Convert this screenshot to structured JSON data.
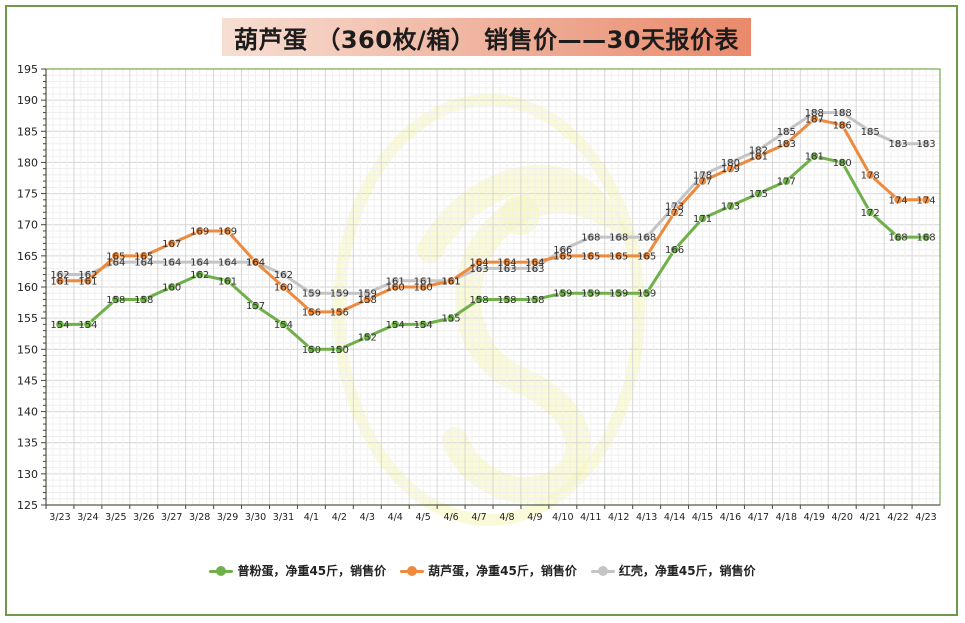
{
  "title": "葫芦蛋 （360枚/箱） 销售价——30天报价表",
  "colors": {
    "green": "#6fb04a",
    "orange": "#ee8a3e",
    "gray": "#c4c4c4",
    "frame": "#6f9a4a",
    "watermark": "#f4f3a6"
  },
  "chart_data": {
    "type": "line",
    "title": "葫芦蛋 （360枚/箱） 销售价——30天报价表",
    "xlabel": "",
    "ylabel": "",
    "ylim": [
      125,
      195
    ],
    "yticks": [
      125,
      130,
      135,
      140,
      145,
      150,
      155,
      160,
      165,
      170,
      175,
      180,
      185,
      190,
      195
    ],
    "grid": true,
    "legend_position": "bottom",
    "categories": [
      "3/23",
      "3/24",
      "3/25",
      "3/26",
      "3/27",
      "3/28",
      "3/29",
      "3/30",
      "3/31",
      "4/1",
      "4/2",
      "4/3",
      "4/4",
      "4/5",
      "4/6",
      "4/7",
      "4/8",
      "4/9",
      "4/10",
      "4/11",
      "4/12",
      "4/13",
      "4/14",
      "4/15",
      "4/16",
      "4/17",
      "4/18",
      "4/19",
      "4/20",
      "4/21",
      "4/22",
      "4/23"
    ],
    "series": [
      {
        "name": "普粉蛋，净重45斤，销售价",
        "color": "#6fb04a",
        "values": [
          154,
          154,
          158,
          158,
          160,
          162,
          161,
          157,
          154,
          150,
          150,
          152,
          154,
          154,
          155,
          158,
          158,
          158,
          159,
          159,
          159,
          159,
          166,
          171,
          173,
          175,
          177,
          181,
          180,
          172,
          168,
          168
        ]
      },
      {
        "name": "葫芦蛋，净重45斤，销售价",
        "color": "#ee8a3e",
        "values": [
          161,
          161,
          165,
          165,
          167,
          169,
          169,
          164,
          160,
          156,
          156,
          158,
          160,
          160,
          161,
          164,
          164,
          164,
          165,
          165,
          165,
          165,
          172,
          177,
          179,
          181,
          183,
          187,
          186,
          178,
          174,
          174
        ]
      },
      {
        "name": "红壳，净重45斤，销售价",
        "color": "#c4c4c4",
        "values": [
          162,
          162,
          164,
          164,
          164,
          164,
          164,
          164,
          162,
          159,
          159,
          159,
          161,
          161,
          161,
          163,
          163,
          163,
          166,
          168,
          168,
          168,
          173,
          178,
          180,
          182,
          185,
          188,
          188,
          185,
          183,
          183
        ]
      }
    ]
  }
}
